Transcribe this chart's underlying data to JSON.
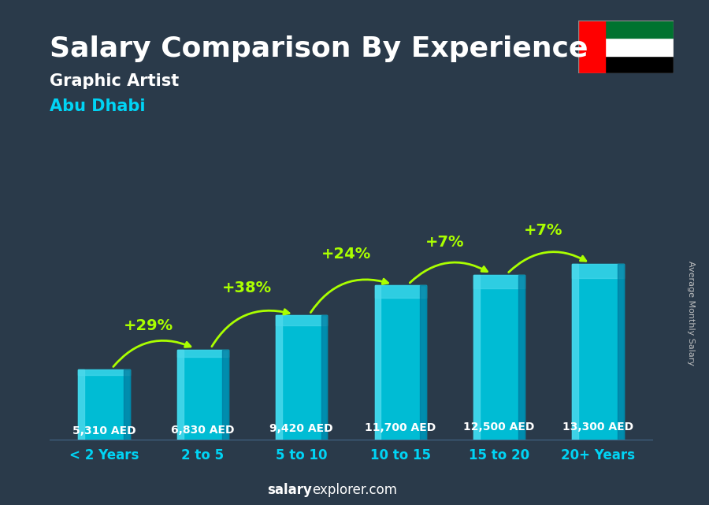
{
  "title": "Salary Comparison By Experience",
  "subtitle1": "Graphic Artist",
  "subtitle2": "Abu Dhabi",
  "ylabel": "Average Monthly Salary",
  "footer_bold": "salary",
  "footer_normal": "explorer.com",
  "categories": [
    "< 2 Years",
    "2 to 5",
    "5 to 10",
    "10 to 15",
    "15 to 20",
    "20+ Years"
  ],
  "values": [
    5310,
    6830,
    9420,
    11700,
    12500,
    13300
  ],
  "labels": [
    "5,310 AED",
    "6,830 AED",
    "9,420 AED",
    "11,700 AED",
    "12,500 AED",
    "13,300 AED"
  ],
  "pct_changes": [
    "+29%",
    "+38%",
    "+24%",
    "+7%",
    "+7%"
  ],
  "bar_color_main": "#00bcd4",
  "bar_color_light": "#4dd9ec",
  "bar_color_dark": "#007a9e",
  "bg_color": "#2a3a4a",
  "title_color": "#ffffff",
  "subtitle1_color": "#ffffff",
  "subtitle2_color": "#00d4f5",
  "label_color": "#ffffff",
  "pct_color": "#aaff00",
  "xtick_color": "#00d4f5",
  "footer_color": "#ffffff",
  "ylabel_color": "#cccccc",
  "arrow_color": "#aaff00",
  "title_fontsize": 26,
  "subtitle1_fontsize": 15,
  "subtitle2_fontsize": 15,
  "label_fontsize": 10,
  "pct_fontsize": 14,
  "xtick_fontsize": 12,
  "footer_fontsize": 12,
  "ylabel_fontsize": 8
}
